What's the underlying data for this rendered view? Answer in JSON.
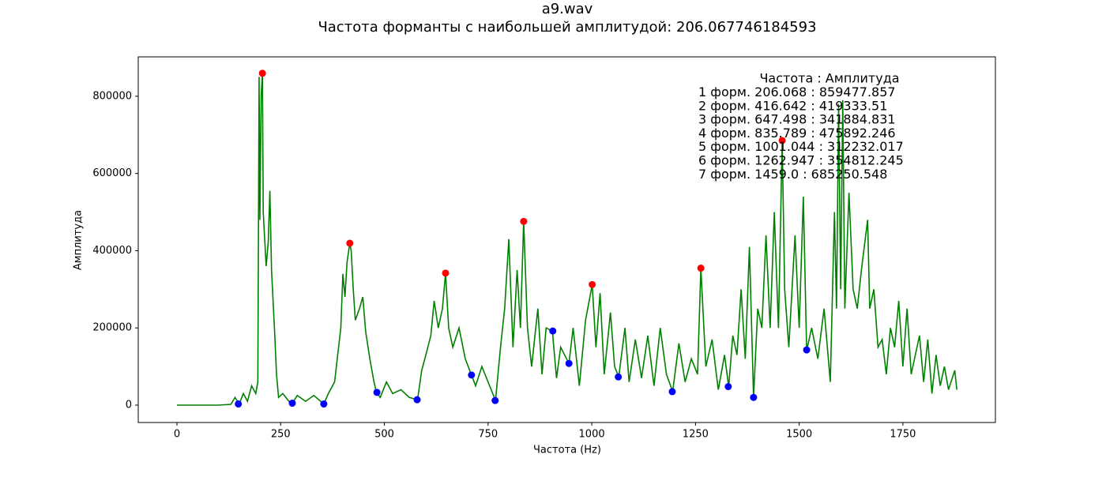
{
  "chart_data": {
    "type": "line",
    "title": "a9.wav",
    "subtitle": "Частота форманты с наибольшей амплитудой: 206.067746184593",
    "xlabel": "Частота (Hz)",
    "ylabel": "Амплитуда",
    "xlim": [
      -93.3,
      1973
    ],
    "ylim": [
      -45000,
      902000
    ],
    "xticks": [
      0,
      250,
      500,
      750,
      1000,
      1250,
      1500,
      1750
    ],
    "yticks": [
      0,
      200000,
      400000,
      600000,
      800000
    ],
    "annotation": {
      "header": "Частота : Амплитуда",
      "lines": [
        "1 форм. 206.068 : 859477.857",
        "2 форм. 416.642 : 419333.51",
        "3 форм. 647.498 : 341884.831",
        "4 форм. 835.789 : 475892.246",
        "5 форм. 1001.044 : 312232.017",
        "6 форм. 1262.947 : 354812.245",
        "7 форм. 1459.0 : 685250.548"
      ]
    },
    "series": [
      {
        "type": "line",
        "color": "#008000",
        "x": [
          0,
          100,
          130,
          140,
          150,
          160,
          170,
          180,
          190,
          195,
          198,
          200,
          203,
          206,
          208,
          212,
          215,
          220,
          224,
          228,
          235,
          240,
          245,
          255,
          270,
          278,
          290,
          310,
          330,
          354,
          365,
          380,
          395,
          400,
          405,
          410,
          416.642,
          420,
          425,
          430,
          440,
          448,
          455,
          465,
          475,
          481,
          490,
          505,
          520,
          540,
          560,
          580,
          590,
          600,
          612,
          620,
          630,
          640,
          647.498,
          655,
          665,
          680,
          695,
          710,
          720,
          735,
          750,
          768,
          780,
          790,
          800,
          810,
          820,
          828,
          835.789,
          845,
          855,
          870,
          880,
          890,
          905,
          915,
          925,
          945,
          955,
          970,
          985,
          1001.044,
          1010,
          1020,
          1030,
          1045,
          1055,
          1065,
          1080,
          1090,
          1105,
          1120,
          1135,
          1150,
          1165,
          1180,
          1195,
          1210,
          1225,
          1240,
          1255,
          1262.947,
          1275,
          1290,
          1305,
          1320,
          1330,
          1340,
          1350,
          1360,
          1370,
          1380,
          1390,
          1400,
          1410,
          1420,
          1430,
          1440,
          1450,
          1459,
          1465,
          1475,
          1490,
          1500,
          1510,
          1518,
          1530,
          1545,
          1560,
          1575,
          1585,
          1590,
          1595,
          1600,
          1605,
          1610,
          1620,
          1630,
          1640,
          1650,
          1665,
          1670,
          1680,
          1690,
          1700,
          1710,
          1720,
          1730,
          1740,
          1750,
          1760,
          1770,
          1790,
          1800,
          1810,
          1820,
          1830,
          1840,
          1850,
          1860,
          1875,
          1880
        ],
        "values": [
          0,
          0,
          2000,
          20000,
          3000,
          30000,
          10000,
          50000,
          30000,
          60000,
          850000,
          480000,
          800000,
          859477.857,
          500000,
          420000,
          360000,
          420000,
          555000,
          350000,
          200000,
          80000,
          20000,
          30000,
          10000,
          5000,
          25000,
          10000,
          25000,
          3000,
          30000,
          60000,
          200000,
          340000,
          280000,
          370000,
          419333.51,
          400000,
          300000,
          220000,
          250000,
          280000,
          190000,
          120000,
          60000,
          33000,
          20000,
          60000,
          30000,
          40000,
          20000,
          14000,
          90000,
          130000,
          180000,
          270000,
          200000,
          250000,
          341884.831,
          200000,
          150000,
          200000,
          120000,
          78000,
          50000,
          100000,
          60000,
          12000,
          150000,
          250000,
          430000,
          150000,
          350000,
          200000,
          475892.246,
          200000,
          100000,
          250000,
          80000,
          200000,
          192000,
          70000,
          150000,
          108000,
          200000,
          50000,
          220000,
          312232.017,
          150000,
          290000,
          80000,
          240000,
          100000,
          73000,
          200000,
          60000,
          170000,
          70000,
          180000,
          50000,
          200000,
          80000,
          35000,
          160000,
          60000,
          120000,
          80000,
          354812.245,
          100000,
          170000,
          40000,
          130000,
          48000,
          180000,
          130000,
          300000,
          120000,
          410000,
          20000,
          250000,
          200000,
          440000,
          200000,
          500000,
          200000,
          685250.548,
          300000,
          150000,
          440000,
          200000,
          540000,
          141000,
          200000,
          120000,
          250000,
          60000,
          500000,
          250000,
          780000,
          300000,
          790000,
          250000,
          550000,
          300000,
          250000,
          350000,
          480000,
          250000,
          300000,
          150000,
          170000,
          80000,
          200000,
          150000,
          270000,
          100000,
          250000,
          80000,
          180000,
          60000,
          170000,
          30000,
          130000,
          50000,
          100000,
          40000,
          90000,
          40000
        ]
      },
      {
        "type": "scatter",
        "color": "#ff0000",
        "x": [
          206.068,
          416.642,
          647.498,
          835.789,
          1001.044,
          1262.947,
          1459.0
        ],
        "values": [
          859477.857,
          419333.51,
          341884.831,
          475892.246,
          312232.017,
          354812.245,
          685250.548
        ]
      },
      {
        "type": "scatter",
        "color": "#0000ff",
        "x": [
          148,
          278,
          354,
          482,
          579,
          710,
          767,
          906,
          945,
          1064,
          1194,
          1329,
          1390,
          1518
        ],
        "values": [
          3000,
          5000,
          3000,
          33000,
          14000,
          78000,
          12000,
          192000,
          108000,
          73000,
          35000,
          48000,
          20000,
          143000
        ]
      }
    ]
  }
}
